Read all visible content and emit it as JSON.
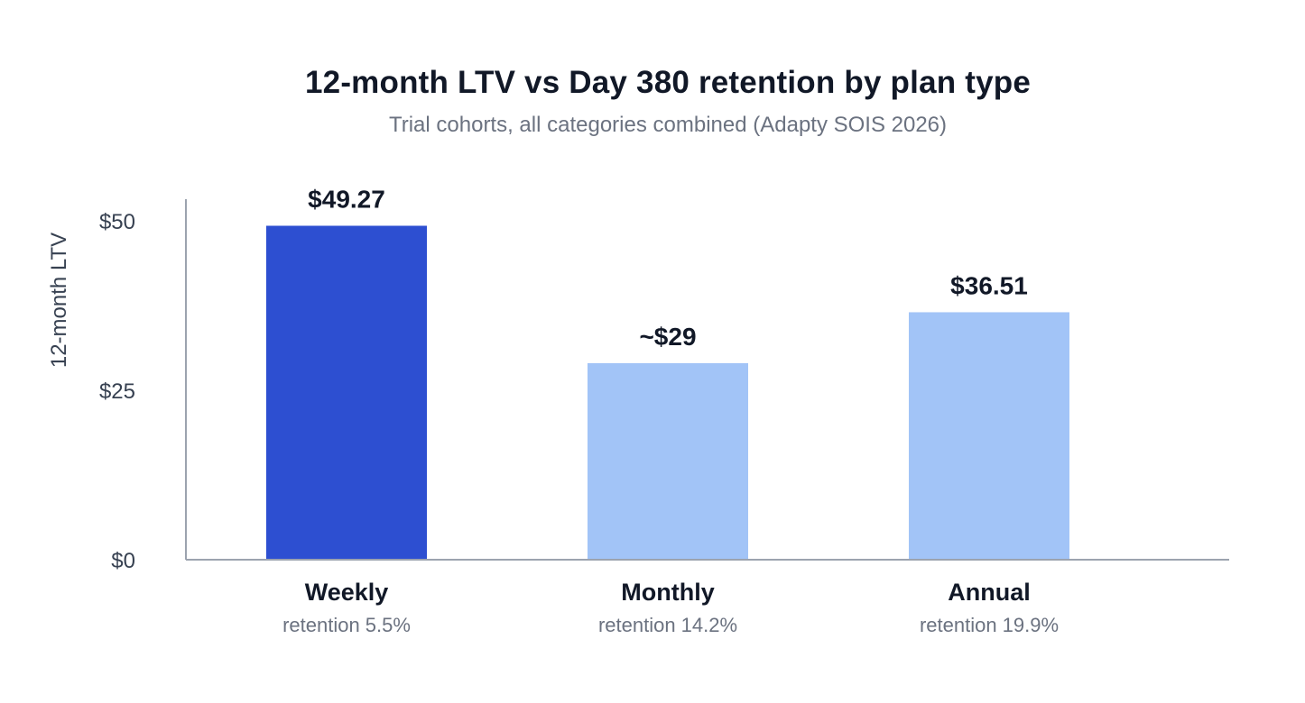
{
  "chart_data": {
    "type": "bar",
    "title": "12-month LTV vs Day 380 retention by plan type",
    "subtitle": "Trial cohorts, all categories combined (Adapty SOIS 2026)",
    "xlabel": "",
    "ylabel": "12-month LTV",
    "ylim": [
      0,
      50
    ],
    "yticks": [
      {
        "value": 0,
        "label": "$0"
      },
      {
        "value": 25,
        "label": "$25"
      },
      {
        "value": 50,
        "label": "$50"
      }
    ],
    "categories": [
      "Weekly",
      "Monthly",
      "Annual"
    ],
    "category_notes": [
      "retention 5.5%",
      "retention 14.2%",
      "retention 19.9%"
    ],
    "values": [
      49.27,
      29,
      36.51
    ],
    "value_labels": [
      "$49.27",
      "~$29",
      "$36.51"
    ],
    "bar_colors": [
      "#2d4fd1",
      "#a2c4f7",
      "#a2c4f7"
    ],
    "grid": false,
    "legend": "none"
  },
  "colors": {
    "title": "#111827",
    "subtitle": "#6b7280",
    "axis_text": "#374151",
    "axis_line": "#9ca3af",
    "value_label": "#111827",
    "category_label": "#111827",
    "category_note": "#6b7280"
  }
}
